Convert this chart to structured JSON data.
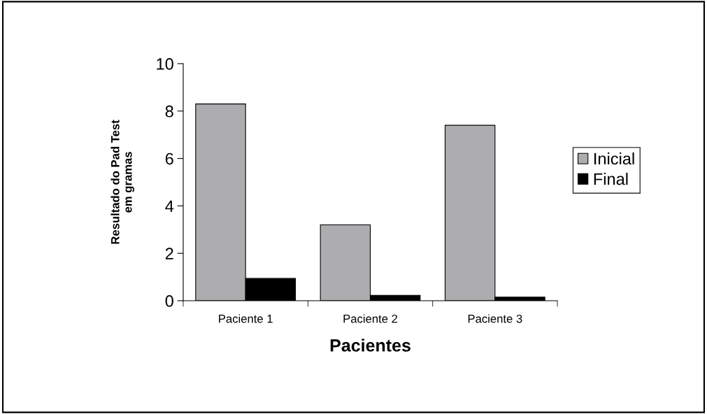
{
  "chart_data": {
    "type": "bar",
    "xlabel": "Pacientes",
    "ylabel": "Resultado do Pad Test\nem gramas",
    "categories": [
      "Paciente 1",
      "Paciente 2",
      "Paciente 3"
    ],
    "series": [
      {
        "name": "Inicial",
        "color": "#adadaf",
        "values": [
          8.3,
          3.2,
          7.4
        ]
      },
      {
        "name": "Final",
        "color": "#000000",
        "values": [
          0.94,
          0.23,
          0.15
        ]
      }
    ],
    "ylim": [
      0,
      10
    ],
    "yticks": [
      0,
      2,
      4,
      6,
      8,
      10
    ],
    "grid": false,
    "legend": "right"
  }
}
